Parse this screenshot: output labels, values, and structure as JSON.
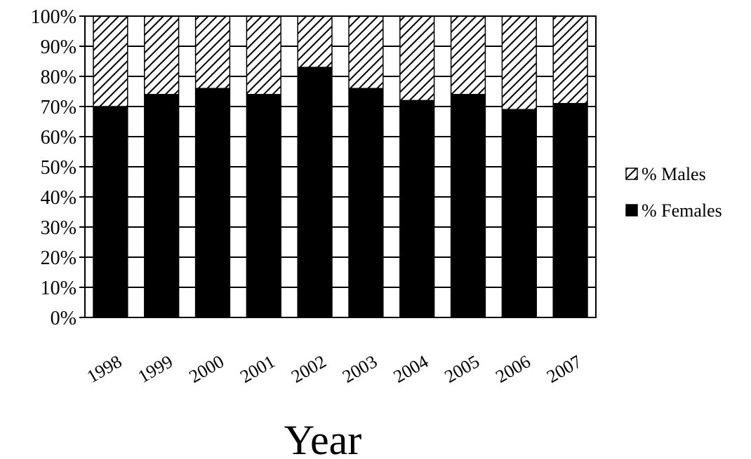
{
  "chart_data": {
    "type": "bar",
    "stacked": true,
    "categories": [
      "1998",
      "1999",
      "2000",
      "2001",
      "2002",
      "2003",
      "2004",
      "2005",
      "2006",
      "2007"
    ],
    "series": [
      {
        "name": "% Females",
        "values": [
          70,
          74,
          76,
          74,
          83,
          76,
          72,
          74,
          69,
          71
        ],
        "fill": "#000000"
      },
      {
        "name": "% Males",
        "values": [
          30,
          26,
          24,
          26,
          17,
          24,
          28,
          26,
          31,
          29
        ],
        "fill": "hatch"
      }
    ],
    "title": "",
    "xlabel": "Year",
    "ylabel": "",
    "ylim": [
      0,
      100
    ],
    "y_ticks": [
      "0%",
      "10%",
      "20%",
      "30%",
      "40%",
      "50%",
      "60%",
      "70%",
      "80%",
      "90%",
      "100%"
    ],
    "grid": true,
    "legend": {
      "position": "right",
      "items": [
        {
          "label": "% Males",
          "fill": "hatch"
        },
        {
          "label": "% Females",
          "fill": "#000000"
        }
      ]
    }
  }
}
